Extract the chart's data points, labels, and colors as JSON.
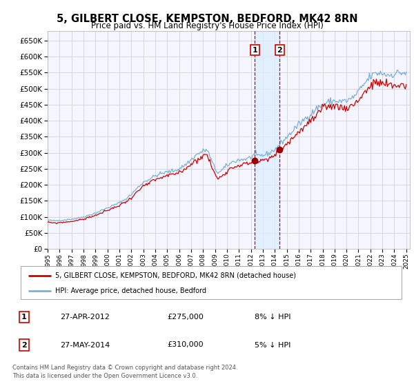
{
  "title1": "5, GILBERT CLOSE, KEMPSTON, BEDFORD, MK42 8RN",
  "title2": "Price paid vs. HM Land Registry's House Price Index (HPI)",
  "legend1": "5, GILBERT CLOSE, KEMPSTON, BEDFORD, MK42 8RN (detached house)",
  "legend2": "HPI: Average price, detached house, Bedford",
  "sale1_date": "27-APR-2012",
  "sale1_price": 275000,
  "sale1_label": "8% ↓ HPI",
  "sale2_date": "27-MAY-2014",
  "sale2_price": 310000,
  "sale2_label": "5% ↓ HPI",
  "footer": "Contains HM Land Registry data © Crown copyright and database right 2024.\nThis data is licensed under the Open Government Licence v3.0.",
  "hpi_color": "#7bafd4",
  "price_color": "#cc0000",
  "plot_bg": "#f5f5ff",
  "grid_color": "#cccccc",
  "ylim": [
    0,
    680000
  ],
  "yticks": [
    0,
    50000,
    100000,
    150000,
    200000,
    250000,
    300000,
    350000,
    400000,
    450000,
    500000,
    550000,
    600000,
    650000
  ],
  "sale1_x": 2012.33,
  "sale2_x": 2014.42,
  "marker_color": "#990000",
  "shade_color": "#ddeeff"
}
